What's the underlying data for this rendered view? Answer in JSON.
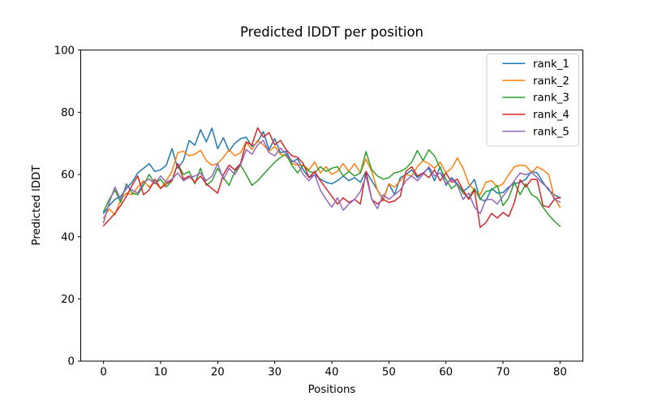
{
  "figure": {
    "background": "#ffffff",
    "axis_color": "#000000",
    "legend_border_color": "#cccccc"
  },
  "chart_data": {
    "type": "line",
    "title": "Predicted lDDT per position",
    "xlabel": "Positions",
    "ylabel": "Predicted lDDT",
    "xlim": [
      -4,
      84
    ],
    "ylim": [
      0,
      100
    ],
    "xticks": [
      0,
      10,
      20,
      30,
      40,
      50,
      60,
      70,
      80
    ],
    "yticks": [
      0,
      20,
      40,
      60,
      80,
      100
    ],
    "grid": false,
    "line_width": 1.5,
    "legend_position": "upper right",
    "x": [
      0,
      1,
      2,
      3,
      4,
      5,
      6,
      7,
      8,
      9,
      10,
      11,
      12,
      13,
      14,
      15,
      16,
      17,
      18,
      19,
      20,
      21,
      22,
      23,
      24,
      25,
      26,
      27,
      28,
      29,
      30,
      31,
      32,
      33,
      34,
      35,
      36,
      37,
      38,
      39,
      40,
      41,
      42,
      43,
      44,
      45,
      46,
      47,
      48,
      49,
      50,
      51,
      52,
      53,
      54,
      55,
      56,
      57,
      58,
      59,
      60,
      61,
      62,
      63,
      64,
      65,
      66,
      67,
      68,
      69,
      70,
      71,
      72,
      73,
      74,
      75,
      76,
      77,
      78,
      79,
      80
    ],
    "series": [
      {
        "name": "rank_1",
        "color": "#1f77b4",
        "values": [
          47.5,
          50,
          52,
          53,
          55.5,
          57.5,
          60.5,
          62,
          63.5,
          61,
          61.5,
          63,
          68.3,
          62,
          64.5,
          70.9,
          69.4,
          74.4,
          70.5,
          74.9,
          68.3,
          71.8,
          67.5,
          70,
          71.5,
          72,
          69,
          70.5,
          73.8,
          68,
          71.5,
          67,
          67.5,
          64,
          65,
          61.5,
          59,
          60,
          58.5,
          57.5,
          57,
          58,
          59.5,
          58,
          59,
          57.5,
          61,
          58,
          55,
          52,
          57,
          53.5,
          59,
          60,
          61.5,
          59,
          60.5,
          62,
          58,
          62.5,
          56.5,
          59,
          57,
          54.5,
          56,
          58.4,
          52,
          51.5,
          55.5,
          54,
          54.2,
          56,
          57,
          57.5,
          58.5,
          61,
          60.5,
          57.5,
          55,
          53.5,
          52.4
        ]
      },
      {
        "name": "rank_2",
        "color": "#ff7f0e",
        "values": [
          46,
          49,
          47,
          52,
          54,
          53.5,
          56,
          58,
          56,
          57.5,
          55.5,
          58,
          61,
          67,
          67.5,
          66,
          66.5,
          67.8,
          64.5,
          63,
          63.5,
          65.5,
          68,
          66,
          67,
          70.5,
          68,
          71,
          69.5,
          67.5,
          69,
          66.5,
          66,
          63.5,
          63,
          63,
          61.5,
          64,
          60.5,
          62.5,
          60,
          61,
          63.5,
          61,
          63.5,
          60.5,
          65,
          61,
          55,
          51.5,
          57,
          56,
          58,
          60,
          59.5,
          62.5,
          64.5,
          63.5,
          62,
          64,
          60.5,
          62,
          65.3,
          62,
          57,
          55,
          53.5,
          57.5,
          58,
          56,
          57,
          60,
          62.5,
          63,
          62.8,
          60.5,
          62.5,
          61.5,
          60,
          52.5,
          49.4
        ]
      },
      {
        "name": "rank_3",
        "color": "#2ca02c",
        "values": [
          48,
          52,
          55,
          51,
          57,
          54,
          53.5,
          56.5,
          60,
          57,
          58.5,
          56,
          58,
          63.5,
          60,
          61,
          57,
          62,
          56.5,
          58,
          62,
          59,
          56.5,
          61,
          63,
          60,
          56.5,
          58,
          60,
          62,
          64,
          65.5,
          66.5,
          63,
          60.5,
          63,
          61,
          60.5,
          62.5,
          61,
          62,
          62.5,
          59.5,
          61,
          59.5,
          60.5,
          67.3,
          61.5,
          59.5,
          58.5,
          59,
          60.5,
          61,
          62,
          64,
          67.7,
          64.5,
          67.9,
          66,
          62,
          58.5,
          55.5,
          57,
          54,
          52.5,
          55.5,
          52,
          54.5,
          55,
          56.5,
          50,
          52.5,
          57.5,
          53.5,
          57,
          53.5,
          52.5,
          49.5,
          47,
          45,
          43.3
        ]
      },
      {
        "name": "rank_4",
        "color": "#d62728",
        "values": [
          43.5,
          45.5,
          47.5,
          50,
          53,
          56.5,
          59.5,
          53.5,
          55,
          58.5,
          55.5,
          57,
          58,
          63.5,
          58.5,
          59.5,
          57.5,
          59.5,
          57,
          55.5,
          54,
          60,
          63,
          61.5,
          63.5,
          70.5,
          69.5,
          75,
          72,
          73.5,
          69.5,
          71,
          68,
          66,
          65.5,
          63.5,
          59,
          61,
          58,
          55.5,
          53,
          50.5,
          52.5,
          51,
          52,
          50.5,
          61,
          52,
          50.5,
          52,
          51,
          51.5,
          53,
          61,
          62.5,
          59.5,
          60.5,
          59,
          61.5,
          58,
          60.5,
          57.5,
          58.5,
          55,
          52,
          55,
          43,
          44.5,
          47.5,
          46,
          47.8,
          46.5,
          51,
          58.3,
          56,
          58.5,
          58.3,
          50,
          49.5,
          52,
          52.7
        ]
      },
      {
        "name": "rank_5",
        "color": "#9467bd",
        "values": [
          44.5,
          51,
          56,
          52,
          56.5,
          55,
          54,
          57.5,
          58.5,
          57,
          59.5,
          57.5,
          58.5,
          60.5,
          58,
          59,
          59.5,
          60.5,
          58,
          59.5,
          63.5,
          58.5,
          62,
          60,
          63,
          68,
          66.5,
          69.5,
          71,
          67,
          66,
          68.5,
          66.5,
          64.5,
          63.5,
          60,
          58,
          60,
          55,
          52,
          49.5,
          52.5,
          48.5,
          50.5,
          52,
          54.5,
          59.5,
          52,
          49,
          53.5,
          52,
          53.5,
          55,
          58,
          59.5,
          58,
          60,
          62.5,
          59.5,
          60.5,
          57,
          58.5,
          56.5,
          52,
          54,
          49.5,
          47.4,
          52,
          52,
          50.5,
          53,
          55.5,
          58,
          60.5,
          59.9,
          60.7,
          59,
          57,
          55.5,
          52,
          51.1
        ]
      }
    ]
  }
}
